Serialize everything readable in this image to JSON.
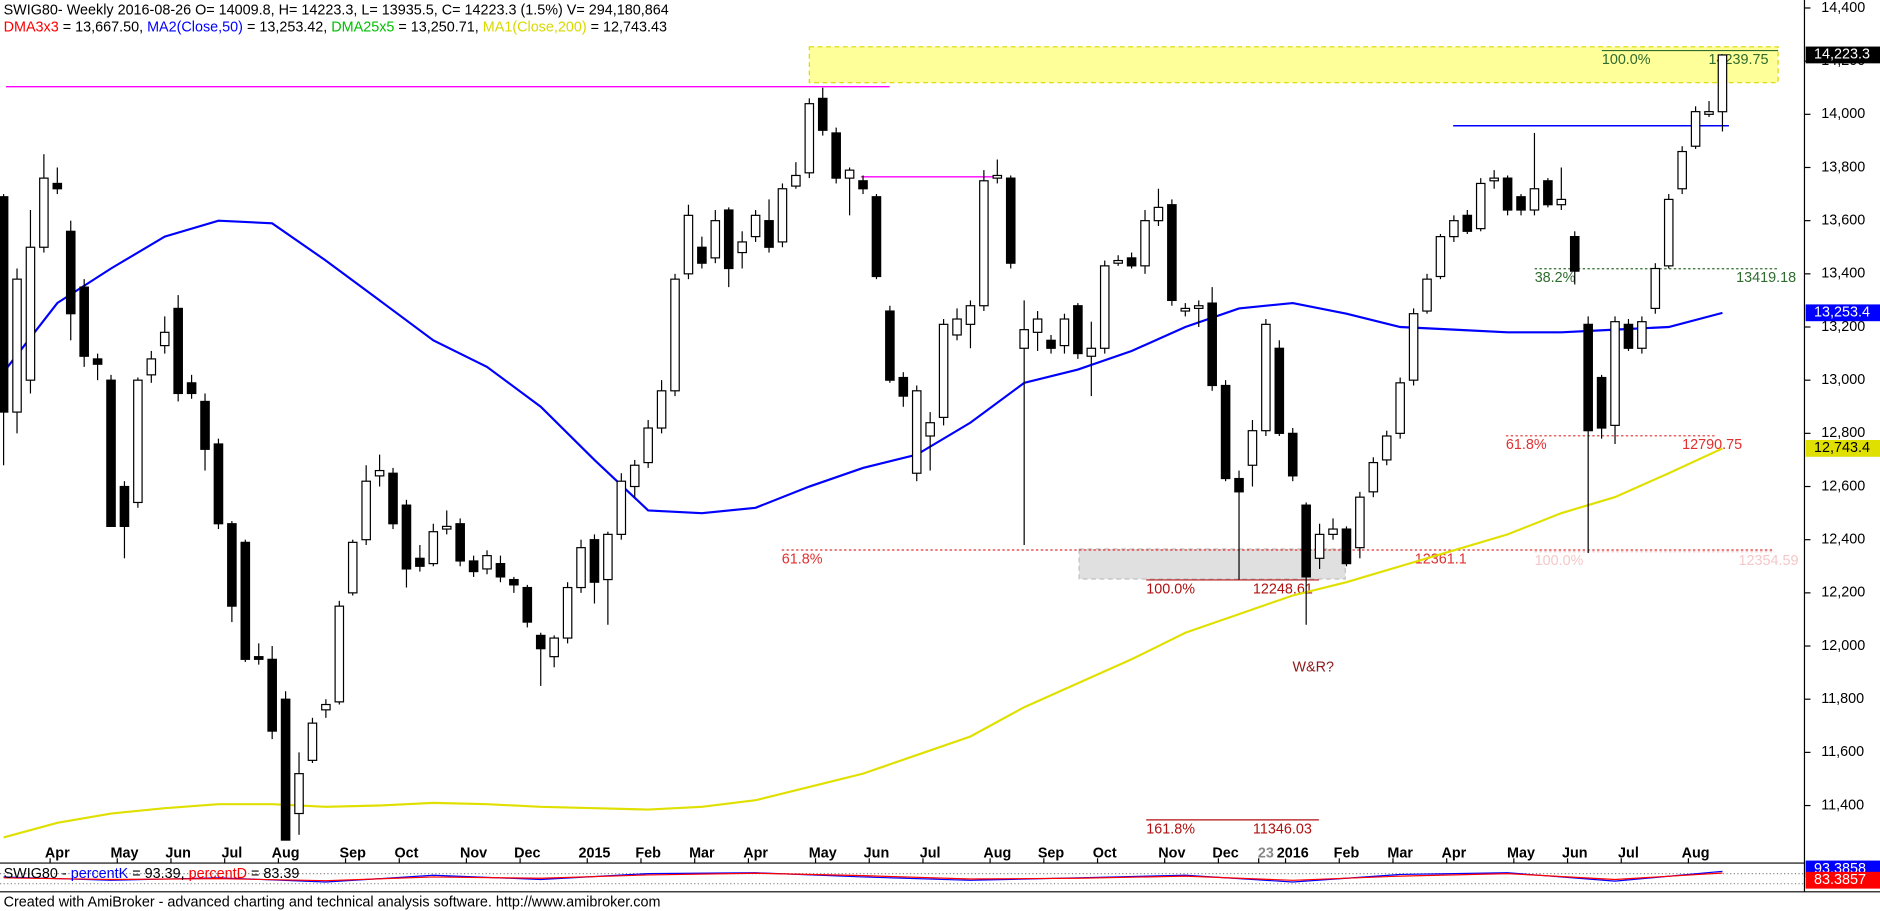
{
  "chart_data": {
    "type": "candlestick",
    "header": "SWIG80- Weekly 2016-08-26 O= 14009.8, H= 14223.3, L= 13935.5, C= 14223.3 (1.5%) V= 294,180,864",
    "legend_line": [
      {
        "text": "DMA3x3",
        "color": "#ff0000"
      },
      {
        "text": " = 13,667.50, ",
        "color": "#000000"
      },
      {
        "text": "MA2(Close,50)",
        "color": "#0000ff"
      },
      {
        "text": " = 13,253.42, ",
        "color": "#000000"
      },
      {
        "text": "DMA25x5",
        "color": "#00c000"
      },
      {
        "text": " = 13,250.71, ",
        "color": "#000000"
      },
      {
        "text": "MA1(Close,200)",
        "color": "#d8d800"
      },
      {
        "text": " = 12,743.43",
        "color": "#000000"
      }
    ],
    "categories": [
      null,
      null,
      null,
      null,
      "Apr",
      null,
      null,
      null,
      null,
      "May",
      null,
      null,
      null,
      "Jun",
      null,
      null,
      null,
      "Jul",
      null,
      null,
      null,
      "Aug",
      null,
      null,
      null,
      null,
      "Sep",
      null,
      null,
      null,
      "Oct",
      null,
      null,
      null,
      null,
      "Nov",
      null,
      null,
      null,
      "Dec",
      null,
      null,
      null,
      null,
      "2015",
      null,
      null,
      null,
      "Feb",
      null,
      null,
      null,
      "Mar",
      null,
      null,
      null,
      "Apr",
      null,
      null,
      null,
      null,
      "May",
      null,
      null,
      null,
      "Jun",
      null,
      null,
      null,
      "Jul",
      null,
      null,
      null,
      null,
      "Aug",
      null,
      null,
      null,
      "Sep",
      null,
      null,
      null,
      "Oct",
      null,
      null,
      null,
      null,
      "Nov",
      null,
      null,
      null,
      "Dec",
      null,
      null,
      "23",
      null,
      "2016",
      null,
      null,
      null,
      "Feb",
      null,
      null,
      null,
      "Mar",
      null,
      null,
      null,
      "Apr",
      null,
      null,
      null,
      null,
      "May",
      null,
      null,
      null,
      "Jun",
      null,
      null,
      null,
      "Jul",
      null,
      null,
      null,
      null,
      "Aug",
      null,
      null
    ],
    "ohlc": [
      [
        13690,
        13700,
        12680,
        12880
      ],
      [
        12880,
        13420,
        12800,
        13380
      ],
      [
        13000,
        13640,
        12950,
        13500
      ],
      [
        13500,
        13850,
        13480,
        13760
      ],
      [
        13740,
        13800,
        13700,
        13720
      ],
      [
        13560,
        13600,
        13150,
        13250
      ],
      [
        13350,
        13380,
        13050,
        13090
      ],
      [
        13080,
        13100,
        13000,
        13060
      ],
      [
        13000,
        13020,
        12450,
        12450
      ],
      [
        12600,
        12620,
        12330,
        12450
      ],
      [
        12540,
        13010,
        12520,
        13000
      ],
      [
        13020,
        13110,
        12990,
        13080
      ],
      [
        13130,
        13240,
        13100,
        13180
      ],
      [
        13270,
        13320,
        12920,
        12950
      ],
      [
        12990,
        13020,
        12930,
        12950
      ],
      [
        12920,
        12950,
        12660,
        12740
      ],
      [
        12760,
        12780,
        12440,
        12460
      ],
      [
        12460,
        12470,
        12090,
        12150
      ],
      [
        12390,
        12400,
        11940,
        11950
      ],
      [
        11960,
        12010,
        11930,
        11950
      ],
      [
        11950,
        12000,
        11650,
        11680
      ],
      [
        11800,
        11830,
        11270,
        11270
      ],
      [
        11370,
        11600,
        11290,
        11520
      ],
      [
        11570,
        11730,
        11560,
        11710
      ],
      [
        11760,
        11800,
        11730,
        11780
      ],
      [
        11790,
        12170,
        11780,
        12150
      ],
      [
        12200,
        12400,
        12190,
        12390
      ],
      [
        12400,
        12680,
        12380,
        12620
      ],
      [
        12640,
        12720,
        12600,
        12660
      ],
      [
        12650,
        12670,
        12440,
        12460
      ],
      [
        12530,
        12550,
        12220,
        12290
      ],
      [
        12330,
        12380,
        12280,
        12300
      ],
      [
        12310,
        12460,
        12300,
        12430
      ],
      [
        12440,
        12510,
        12420,
        12450
      ],
      [
        12460,
        12480,
        12300,
        12320
      ],
      [
        12320,
        12340,
        12260,
        12280
      ],
      [
        12290,
        12360,
        12270,
        12340
      ],
      [
        12310,
        12340,
        12240,
        12260
      ],
      [
        12250,
        12260,
        12200,
        12230
      ],
      [
        12220,
        12230,
        12070,
        12090
      ],
      [
        12040,
        12050,
        11850,
        11990
      ],
      [
        11960,
        12040,
        11920,
        12030
      ],
      [
        12030,
        12240,
        12010,
        12220
      ],
      [
        12220,
        12400,
        12200,
        12370
      ],
      [
        12400,
        12420,
        12160,
        12240
      ],
      [
        12250,
        12430,
        12080,
        12420
      ],
      [
        12420,
        12650,
        12400,
        12620
      ],
      [
        12600,
        12700,
        12560,
        12680
      ],
      [
        12690,
        12850,
        12670,
        12820
      ],
      [
        12820,
        13000,
        12800,
        12960
      ],
      [
        12960,
        13400,
        12940,
        13380
      ],
      [
        13400,
        13660,
        13380,
        13620
      ],
      [
        13500,
        13540,
        13420,
        13440
      ],
      [
        13460,
        13640,
        13440,
        13600
      ],
      [
        13640,
        13650,
        13350,
        13420
      ],
      [
        13480,
        13560,
        13420,
        13520
      ],
      [
        13540,
        13640,
        13520,
        13620
      ],
      [
        13600,
        13680,
        13480,
        13500
      ],
      [
        13520,
        13740,
        13500,
        13720
      ],
      [
        13730,
        13820,
        13720,
        13770
      ],
      [
        13780,
        14060,
        13760,
        14040
      ],
      [
        14060,
        14100,
        13920,
        13940
      ],
      [
        13930,
        13950,
        13740,
        13760
      ],
      [
        13760,
        13800,
        13620,
        13790
      ],
      [
        13750,
        13770,
        13700,
        13720
      ],
      [
        13690,
        13700,
        13380,
        13390
      ],
      [
        13260,
        13280,
        12990,
        13000
      ],
      [
        13010,
        13030,
        12900,
        12940
      ],
      [
        12650,
        12980,
        12620,
        12960
      ],
      [
        12790,
        12880,
        12660,
        12840
      ],
      [
        12860,
        13230,
        12830,
        13210
      ],
      [
        13170,
        13270,
        13150,
        13230
      ],
      [
        13210,
        13300,
        13120,
        13280
      ],
      [
        13280,
        13790,
        13260,
        13750
      ],
      [
        13760,
        13830,
        13740,
        13770
      ],
      [
        13760,
        13770,
        13420,
        13440
      ],
      [
        13120,
        13300,
        12380,
        13190
      ],
      [
        13180,
        13260,
        13110,
        13230
      ],
      [
        13150,
        13170,
        13100,
        13120
      ],
      [
        13130,
        13250,
        13100,
        13230
      ],
      [
        13280,
        13290,
        13080,
        13100
      ],
      [
        13090,
        13220,
        12940,
        13120
      ],
      [
        13120,
        13450,
        13100,
        13430
      ],
      [
        13440,
        13470,
        13430,
        13450
      ],
      [
        13460,
        13480,
        13420,
        13430
      ],
      [
        13430,
        13640,
        13400,
        13600
      ],
      [
        13600,
        13720,
        13580,
        13650
      ],
      [
        13660,
        13680,
        13280,
        13300
      ],
      [
        13260,
        13290,
        13240,
        13270
      ],
      [
        13270,
        13300,
        13200,
        13280
      ],
      [
        13290,
        13350,
        12960,
        12980
      ],
      [
        12980,
        13000,
        12620,
        12630
      ],
      [
        12630,
        12660,
        12250,
        12580
      ],
      [
        12680,
        12850,
        12600,
        12810
      ],
      [
        12810,
        13230,
        12790,
        13210
      ],
      [
        13120,
        13150,
        12790,
        12800
      ],
      [
        12800,
        12820,
        12620,
        12640
      ],
      [
        12530,
        12540,
        12080,
        12260
      ],
      [
        12330,
        12460,
        12290,
        12420
      ],
      [
        12420,
        12480,
        12400,
        12440
      ],
      [
        12440,
        12450,
        12300,
        12310
      ],
      [
        12370,
        12580,
        12330,
        12560
      ],
      [
        12580,
        12710,
        12560,
        12690
      ],
      [
        12700,
        12810,
        12680,
        12790
      ],
      [
        12800,
        13010,
        12780,
        12990
      ],
      [
        13000,
        13270,
        12980,
        13250
      ],
      [
        13260,
        13400,
        13250,
        13380
      ],
      [
        13390,
        13550,
        13380,
        13540
      ],
      [
        13540,
        13620,
        13520,
        13600
      ],
      [
        13620,
        13640,
        13550,
        13560
      ],
      [
        13570,
        13760,
        13560,
        13740
      ],
      [
        13750,
        13790,
        13720,
        13760
      ],
      [
        13760,
        13770,
        13620,
        13640
      ],
      [
        13690,
        13700,
        13620,
        13640
      ],
      [
        13640,
        13930,
        13620,
        13720
      ],
      [
        13750,
        13760,
        13650,
        13660
      ],
      [
        13660,
        13800,
        13640,
        13680
      ],
      [
        13540,
        13560,
        13360,
        13410
      ],
      [
        13210,
        13240,
        12350,
        12810
      ],
      [
        13010,
        13020,
        12780,
        12820
      ],
      [
        12830,
        13240,
        12760,
        13220
      ],
      [
        13210,
        13230,
        13110,
        13120
      ],
      [
        13120,
        13240,
        13100,
        13220
      ],
      [
        13270,
        13440,
        13250,
        13420
      ],
      [
        13430,
        13700,
        13420,
        13680
      ],
      [
        13720,
        13880,
        13700,
        13860
      ],
      [
        13880,
        14030,
        13870,
        14010
      ],
      [
        14000,
        14050,
        13990,
        14010
      ],
      [
        14009.8,
        14223.3,
        13935.5,
        14223.3
      ]
    ],
    "series": [
      {
        "color": "#0000ff",
        "x": [
          0,
          4,
          8,
          12,
          16,
          20,
          24,
          28,
          32,
          36,
          40,
          44,
          48,
          52,
          56,
          60,
          64,
          68,
          72,
          76,
          80,
          84,
          88,
          92,
          96,
          100,
          104,
          108,
          112,
          116,
          120,
          124,
          128
        ],
        "values": [
          13030,
          13290,
          13420,
          13540,
          13600,
          13590,
          13450,
          13300,
          13150,
          13050,
          12900,
          12700,
          12510,
          12500,
          12520,
          12600,
          12670,
          12720,
          12840,
          12990,
          13040,
          13110,
          13200,
          13270,
          13290,
          13250,
          13200,
          13190,
          13180,
          13180,
          13190,
          13200,
          13253.42
        ]
      },
      {
        "color": "#e0e000",
        "x": [
          0,
          4,
          8,
          12,
          16,
          20,
          24,
          28,
          32,
          36,
          40,
          44,
          48,
          52,
          56,
          60,
          64,
          68,
          72,
          76,
          80,
          84,
          88,
          92,
          96,
          100,
          104,
          108,
          112,
          116,
          120,
          124,
          128
        ],
        "values": [
          11280,
          11335,
          11370,
          11390,
          11405,
          11405,
          11395,
          11400,
          11410,
          11405,
          11395,
          11390,
          11385,
          11395,
          11420,
          11470,
          11520,
          11590,
          11660,
          11770,
          11860,
          11950,
          12050,
          12120,
          12190,
          12240,
          12300,
          12360,
          12420,
          12500,
          12560,
          12650,
          12743.43
        ]
      }
    ],
    "ylim": [
      11190,
      14430
    ],
    "yticks": [
      {
        "value": 11400,
        "label": "11,400"
      },
      {
        "value": 11600,
        "label": "11,600"
      },
      {
        "value": 11800,
        "label": "11,800"
      },
      {
        "value": 12000,
        "label": "12,000"
      },
      {
        "value": 12200,
        "label": "12,200"
      },
      {
        "value": 12400,
        "label": "12,400"
      },
      {
        "value": 12600,
        "label": "12,600"
      },
      {
        "value": 12800,
        "label": "12,800"
      },
      {
        "value": 13000,
        "label": "13,000"
      },
      {
        "value": 13200,
        "label": "13,200"
      },
      {
        "value": 13400,
        "label": "13,400"
      },
      {
        "value": 13600,
        "label": "13,600"
      },
      {
        "value": 13800,
        "label": "13,800"
      },
      {
        "value": 14000,
        "label": "14,000"
      },
      {
        "value": 14200,
        "label": "14,200"
      },
      {
        "value": 14400,
        "label": "14,400"
      }
    ],
    "price_tags": [
      {
        "value": 14223.3,
        "label": "14,223.3",
        "color": "#000000",
        "text_color": "#ffffff"
      },
      {
        "value": 13253.4,
        "label": "13,253.4",
        "color": "#0000ff",
        "text_color": "#ffffff"
      },
      {
        "value": 12743.4,
        "label": "12,743.4",
        "color": "#e0e000",
        "text_color": "#000000"
      }
    ],
    "zones": [
      {
        "from": 14119,
        "to": 14254,
        "color": "#ffff99"
      },
      {
        "from": 12252,
        "to": 12365,
        "color": "#e0e0e0"
      }
    ],
    "lines": [
      {
        "value": 14104,
        "color": "#ff00ff"
      },
      {
        "value": 13765,
        "color": "#ff00ff"
      },
      {
        "value": 13957,
        "color": "#0000ff"
      }
    ],
    "fib_levels": [
      {
        "label": "100.0%",
        "value": 14239.75,
        "color": "#2e6b2e"
      },
      {
        "label": "38.2%",
        "value": 13419.18,
        "color": "#2e6b2e"
      },
      {
        "label": "61.8%",
        "value": 12790.75,
        "color": "#e03030"
      },
      {
        "label": "61.8%",
        "value": 12361.1,
        "color": "#e03030"
      },
      {
        "label": "100.0%",
        "value": 12354.59,
        "color": "#f4c8c8"
      },
      {
        "label": "100.0%",
        "value": 12248.61,
        "color": "#b01010"
      },
      {
        "label": "161.8%",
        "value": 11346.03,
        "color": "#b01010"
      }
    ],
    "annotation": "W&R?",
    "oscillator": {
      "legend_line": [
        {
          "text": "SWIG80 - ",
          "color": "#000000"
        },
        {
          "text": "percentK",
          "color": "#0000ff"
        },
        {
          "text": " = 93.39, ",
          "color": "#000000"
        },
        {
          "text": "percentD",
          "color": "#ff0000"
        },
        {
          "text": " = 83.39",
          "color": "#000000"
        }
      ],
      "ylim": [
        0,
        100
      ],
      "series": [
        {
          "color": "#0000ff",
          "x": [
            0,
            8,
            16,
            24,
            32,
            40,
            48,
            56,
            64,
            72,
            80,
            88,
            96,
            104,
            112,
            120,
            128
          ],
          "values": [
            60,
            40,
            55,
            30,
            70,
            45,
            80,
            85,
            60,
            40,
            55,
            70,
            30,
            75,
            85,
            35,
            93.39
          ]
        },
        {
          "color": "#ff0000",
          "x": [
            0,
            8,
            16,
            24,
            32,
            40,
            48,
            56,
            64,
            72,
            80,
            88,
            96,
            104,
            112,
            120,
            128
          ],
          "values": [
            55,
            45,
            50,
            38,
            60,
            52,
            72,
            82,
            68,
            48,
            52,
            65,
            40,
            65,
            80,
            45,
            83.39
          ]
        }
      ],
      "price_tags": [
        {
          "value": 93.3858,
          "label": "93.3858",
          "color": "#0000ff",
          "text_color": "#ffffff"
        },
        {
          "value": 83.3857,
          "label": "83.3857",
          "color": "#ff0000",
          "text_color": "#ffffff"
        }
      ]
    },
    "footer": "Created with AmiBroker - advanced charting and technical analysis software. http://www.amibroker.com"
  }
}
